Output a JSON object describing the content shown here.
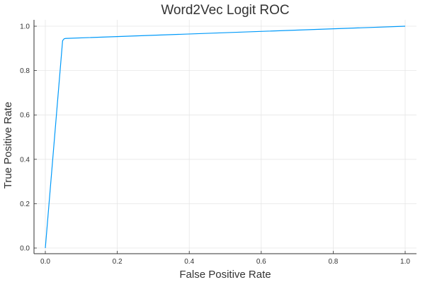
{
  "chart_data": {
    "type": "line",
    "title": "Word2Vec Logit ROC",
    "xlabel": "False Positive Rate",
    "ylabel": "True Positive Rate",
    "xlim": [
      0,
      1
    ],
    "ylim": [
      0,
      1
    ],
    "x_ticks": [
      0.0,
      0.2,
      0.4,
      0.6,
      0.8,
      1.0
    ],
    "y_ticks": [
      0.0,
      0.2,
      0.4,
      0.6,
      0.8,
      1.0
    ],
    "x_tick_labels": [
      "0.0",
      "0.2",
      "0.4",
      "0.6",
      "0.8",
      "1.0"
    ],
    "y_tick_labels": [
      "0.0",
      "0.2",
      "0.4",
      "0.6",
      "0.8",
      "1.0"
    ],
    "grid": true,
    "legend": "none",
    "series": [
      {
        "color": "#009AFA",
        "x": [
          0.0,
          0.048,
          0.052,
          0.056,
          1.0
        ],
        "y": [
          0.0,
          0.935,
          0.943,
          0.945,
          1.0
        ]
      }
    ]
  }
}
